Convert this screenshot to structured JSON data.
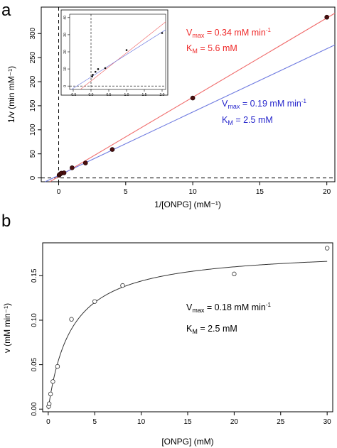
{
  "colors": {
    "red": "#ef2b2b",
    "blue": "#2626cc",
    "red_line": "#f06b6b",
    "blue_line": "#6f7be0",
    "axis": "#000000"
  },
  "chart_data": [
    {
      "type": "scatter",
      "panel_label": "a",
      "xlabel": "1/[ONPG] (mM⁻¹)",
      "ylabel": "1/v (min mM⁻¹)",
      "xlim": [
        -1.3,
        20.6
      ],
      "ylim": [
        -8,
        355
      ],
      "xticks": [
        0,
        5,
        10,
        15,
        20
      ],
      "yticks": [
        0,
        50,
        100,
        150,
        200,
        250,
        300
      ],
      "dashed_reference_lines": {
        "x": 0,
        "y": 0
      },
      "points": {
        "x": [
          0.033,
          0.05,
          0.125,
          0.2,
          0.4,
          1,
          2,
          4,
          10,
          20
        ],
        "y": [
          5.6,
          6.6,
          8.3,
          9.9,
          10.5,
          21,
          31,
          59,
          166,
          334
        ]
      },
      "lines": [
        {
          "name": "red_fit",
          "color": "red",
          "slope": 16.47,
          "intercept": 2.94
        },
        {
          "name": "blue_fit",
          "color": "blue",
          "slope": 13.16,
          "intercept": 5.26
        }
      ],
      "annotations": [
        {
          "vmax_label": "V",
          "vmax_sub": "max",
          "vmax_value": " = 0.34 mM min",
          "vmax_sup": "-1",
          "km_label": "K",
          "km_sub": "M",
          "km_value": " = 5.6 mM",
          "color": "red"
        },
        {
          "vmax_label": "V",
          "vmax_sub": "max",
          "vmax_value": " = 0.19 mM min",
          "vmax_sup": "-1",
          "km_label": "K",
          "km_sub": "M",
          "km_value": " = 2.5 mM",
          "color": "blue"
        }
      ],
      "inset": {
        "xlim": [
          -0.6,
          2.1
        ],
        "ylim": [
          -2,
          42
        ],
        "xticks": [
          -0.5,
          0.0,
          0.5,
          1.0,
          1.5,
          2.0
        ],
        "xtick_labels": [
          "-0.5",
          "0.0",
          "0.5",
          "1.0",
          "1.5",
          "2.0"
        ],
        "yticks": [
          0,
          10,
          20,
          30,
          40
        ],
        "points": {
          "x": [
            0.033,
            0.05,
            0.125,
            0.2,
            0.4,
            1,
            2
          ],
          "y": [
            5.6,
            6.6,
            8.3,
            9.9,
            10.5,
            21,
            31
          ]
        }
      }
    },
    {
      "type": "scatter",
      "panel_label": "b",
      "xlabel": "[ONPG] (mM)",
      "ylabel": "v (mM min⁻¹)",
      "xlim": [
        -0.6,
        30.6
      ],
      "ylim": [
        -0.003,
        0.187
      ],
      "xticks": [
        0,
        5,
        10,
        15,
        20,
        25,
        30
      ],
      "yticks": [
        0.0,
        0.05,
        0.1,
        0.15
      ],
      "ytick_labels": [
        "0.00",
        "0.05",
        "0.10",
        "0.15"
      ],
      "points": {
        "x": [
          0.05,
          0.1,
          0.25,
          0.5,
          1,
          2.5,
          5,
          8,
          20,
          30
        ],
        "y": [
          0.003,
          0.006,
          0.017,
          0.031,
          0.048,
          0.101,
          0.121,
          0.139,
          0.152,
          0.181
        ]
      },
      "fit": {
        "model": "michaelis-menten",
        "vmax": 0.18,
        "km": 2.5
      },
      "annotations": [
        {
          "vmax_label": "V",
          "vmax_sub": "max",
          "vmax_value": " = 0.18 mM min",
          "vmax_sup": "-1",
          "km_label": "K",
          "km_sub": "M",
          "km_value": " = 2.5 mM",
          "color": "#000000"
        }
      ]
    }
  ]
}
